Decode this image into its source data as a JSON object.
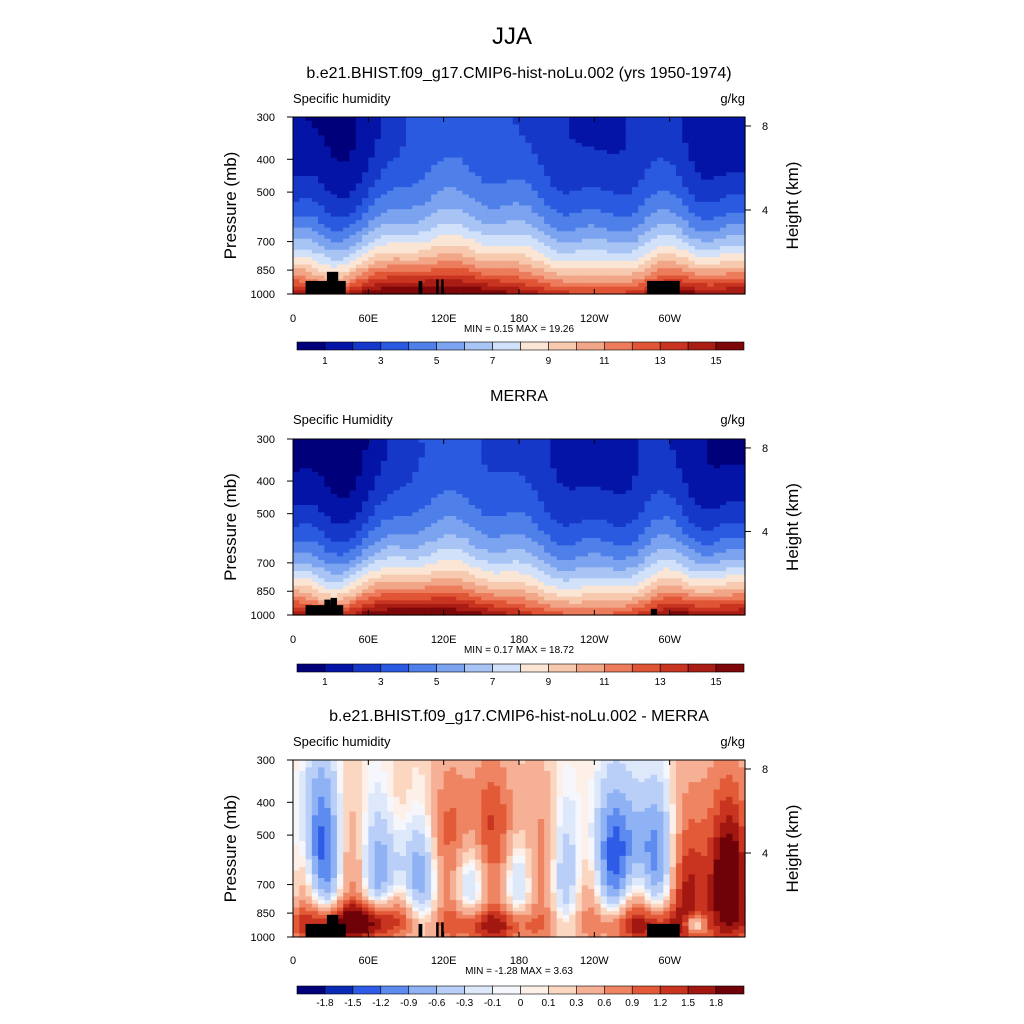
{
  "figure": {
    "title": "JJA"
  },
  "colors": {
    "seq_palette": [
      "#00007a",
      "#0414a7",
      "#1638c8",
      "#2a5ae0",
      "#4f7fe8",
      "#7ba3ef",
      "#a8c4f4",
      "#d2e1fa",
      "#fbe6d6",
      "#f7c9af",
      "#f2a688",
      "#ec7c5c",
      "#e05535",
      "#c93421",
      "#a91d15",
      "#7d0709"
    ],
    "diff_palette": [
      "#00007a",
      "#0a2bb8",
      "#2f5ce6",
      "#5e8bf0",
      "#8fb2f5",
      "#b9cff8",
      "#dde8fb",
      "#f6f7fd",
      "#fdf0e8",
      "#fbd7c2",
      "#f6b095",
      "#ee8462",
      "#e25a37",
      "#c93420",
      "#a21810",
      "#6e0208"
    ]
  },
  "chart_data": [
    {
      "type": "heatmap",
      "title": "b.e21.BHIST.f09_g17.CMIP6-hist-noLu.002 (yrs 1950-1974)",
      "left_label": "Specific humidity",
      "right_label": "g/kg",
      "ylabel": "Pressure (mb)",
      "ylabel_right": "Height (km)",
      "x_ticks": [
        "0",
        "60E",
        "120E",
        "180",
        "120W",
        "60W"
      ],
      "x_tick_values": [
        0,
        60,
        120,
        180,
        240,
        300
      ],
      "xlim": [
        0,
        360
      ],
      "y_ticks": [
        "300",
        "400",
        "500",
        "700",
        "850",
        "1000"
      ],
      "y_tick_values": [
        300,
        400,
        500,
        700,
        850,
        1000
      ],
      "ylim": [
        300,
        1000
      ],
      "y_scale": "log-pressure",
      "right_ticks": [
        "8",
        "4"
      ],
      "right_tick_values": [
        8,
        4
      ],
      "minmax_text": "MIN =   0.15  MAX =  19.26",
      "min": 0.15,
      "max": 19.26,
      "colorbar_labels": [
        "1",
        "3",
        "5",
        "7",
        "9",
        "11",
        "13",
        "15"
      ],
      "colorbar_levels": [
        1,
        2,
        3,
        4,
        5,
        6,
        7,
        8,
        9,
        10,
        11,
        12,
        13,
        14,
        15
      ],
      "palette": "seq",
      "field": "moisture"
    },
    {
      "type": "heatmap",
      "title": "MERRA",
      "left_label": "Specific Humidity",
      "right_label": "g/kg",
      "ylabel": "Pressure (mb)",
      "ylabel_right": "Height (km)",
      "x_ticks": [
        "0",
        "60E",
        "120E",
        "180",
        "120W",
        "60W"
      ],
      "x_tick_values": [
        0,
        60,
        120,
        180,
        240,
        300
      ],
      "xlim": [
        0,
        360
      ],
      "y_ticks": [
        "300",
        "400",
        "500",
        "700",
        "850",
        "1000"
      ],
      "y_tick_values": [
        300,
        400,
        500,
        700,
        850,
        1000
      ],
      "ylim": [
        300,
        1000
      ],
      "y_scale": "log-pressure",
      "right_ticks": [
        "8",
        "4"
      ],
      "right_tick_values": [
        8,
        4
      ],
      "minmax_text": "MIN =   0.17  MAX =  18.72",
      "min": 0.17,
      "max": 18.72,
      "colorbar_labels": [
        "1",
        "3",
        "5",
        "7",
        "9",
        "11",
        "13",
        "15"
      ],
      "colorbar_levels": [
        1,
        2,
        3,
        4,
        5,
        6,
        7,
        8,
        9,
        10,
        11,
        12,
        13,
        14,
        15
      ],
      "palette": "seq",
      "field": "moisture"
    },
    {
      "type": "heatmap",
      "title": "b.e21.BHIST.f09_g17.CMIP6-hist-noLu.002 - MERRA",
      "left_label": "Specific humidity",
      "right_label": "g/kg",
      "ylabel": "Pressure (mb)",
      "ylabel_right": "Height (km)",
      "x_ticks": [
        "0",
        "60E",
        "120E",
        "180",
        "120W",
        "60W"
      ],
      "x_tick_values": [
        0,
        60,
        120,
        180,
        240,
        300
      ],
      "xlim": [
        0,
        360
      ],
      "y_ticks": [
        "300",
        "400",
        "500",
        "700",
        "850",
        "1000"
      ],
      "y_tick_values": [
        300,
        400,
        500,
        700,
        850,
        1000
      ],
      "ylim": [
        300,
        1000
      ],
      "y_scale": "log-pressure",
      "right_ticks": [
        "8",
        "4"
      ],
      "right_tick_values": [
        8,
        4
      ],
      "minmax_text": "MIN =  -1.28  MAX =   3.63",
      "min": -1.28,
      "max": 3.63,
      "colorbar_labels": [
        "-1.8",
        "-1.5",
        "-1.2",
        "-0.9",
        "-0.6",
        "-0.3",
        "-0.1",
        "0",
        "0.1",
        "0.3",
        "0.6",
        "0.9",
        "1.2",
        "1.5",
        "1.8"
      ],
      "colorbar_levels": [
        -1.8,
        -1.5,
        -1.2,
        -0.9,
        -0.6,
        -0.3,
        -0.1,
        0,
        0.1,
        0.3,
        0.6,
        0.9,
        1.2,
        1.5,
        1.8
      ],
      "palette": "diff",
      "field": "difference"
    }
  ]
}
